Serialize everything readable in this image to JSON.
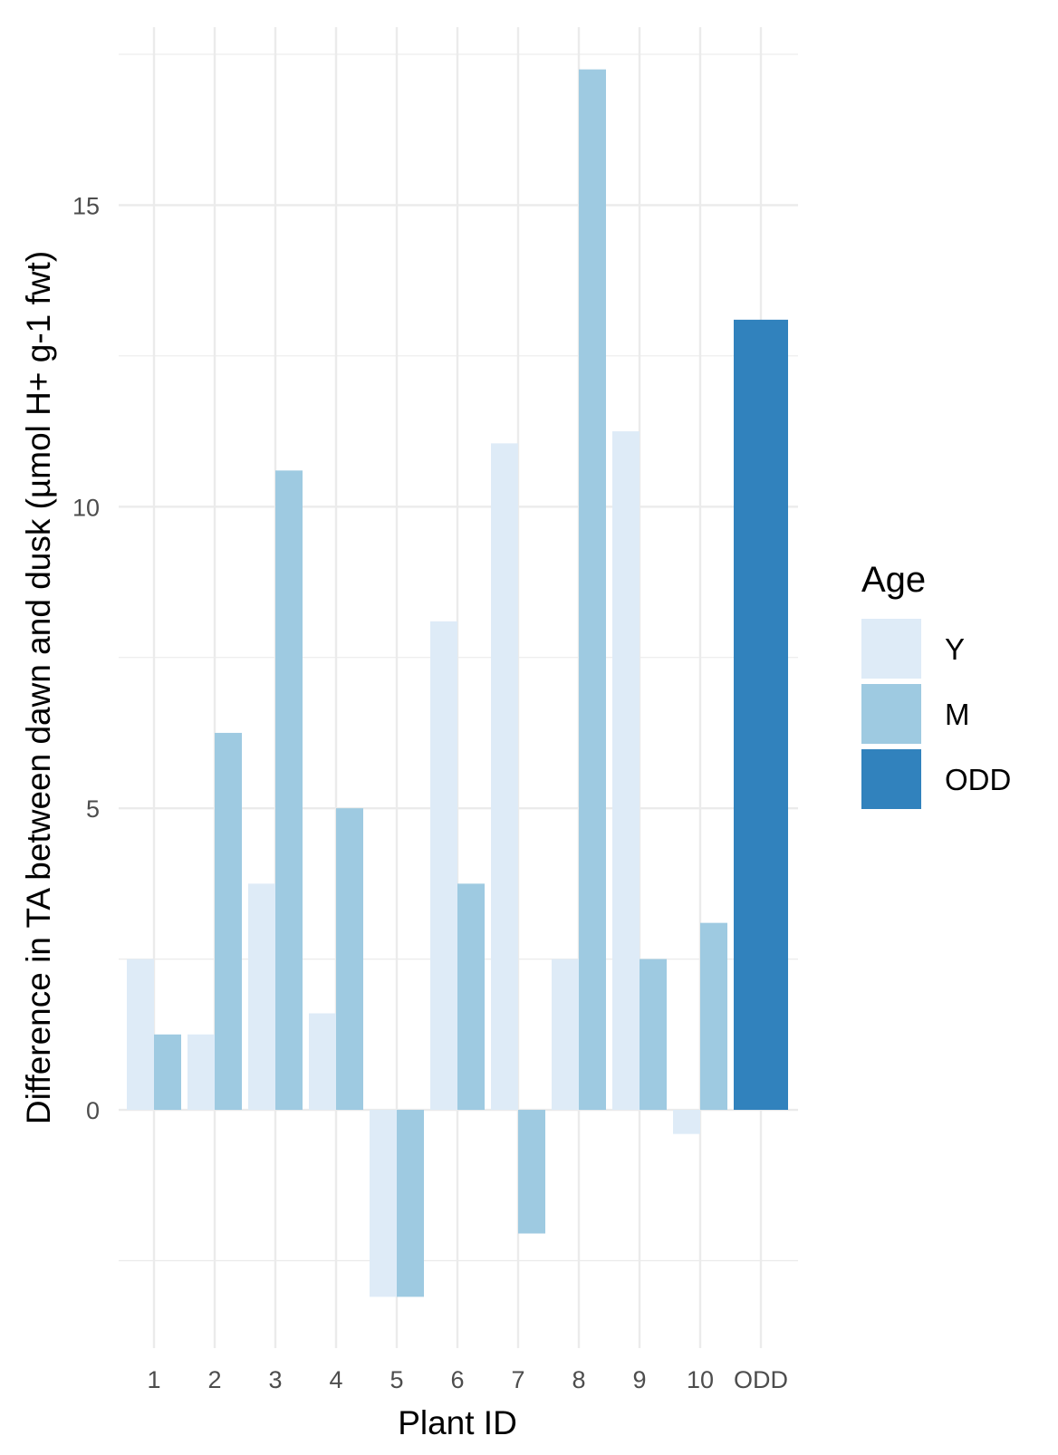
{
  "chart_data": {
    "type": "bar",
    "categories": [
      "1",
      "2",
      "3",
      "4",
      "5",
      "6",
      "7",
      "8",
      "9",
      "10",
      "ODD"
    ],
    "series": [
      {
        "name": "Y",
        "color": "#deebf7",
        "values": [
          2.5,
          1.25,
          3.75,
          1.6,
          -3.1,
          8.1,
          11.05,
          2.5,
          11.25,
          -0.4,
          null
        ]
      },
      {
        "name": "M",
        "color": "#9ecae1",
        "values": [
          1.25,
          6.25,
          10.6,
          5.0,
          -3.1,
          3.75,
          -2.05,
          17.25,
          2.5,
          3.1,
          null
        ]
      },
      {
        "name": "ODD",
        "color": "#3182bd",
        "values": [
          null,
          null,
          null,
          null,
          null,
          null,
          null,
          null,
          null,
          null,
          13.1
        ]
      }
    ],
    "xlabel": "Plant ID",
    "ylabel": "Difference in TA between dawn and dusk (µmol H+ g-1 fwt)",
    "ylim": [
      -3.95,
      17.95
    ],
    "yticks": [
      0,
      5,
      10,
      15
    ],
    "ytick_labels": [
      "0",
      "5",
      "10",
      "15"
    ],
    "grid": true,
    "legend": {
      "title": "Age",
      "position": "right",
      "entries": [
        "Y",
        "M",
        "ODD"
      ]
    }
  }
}
